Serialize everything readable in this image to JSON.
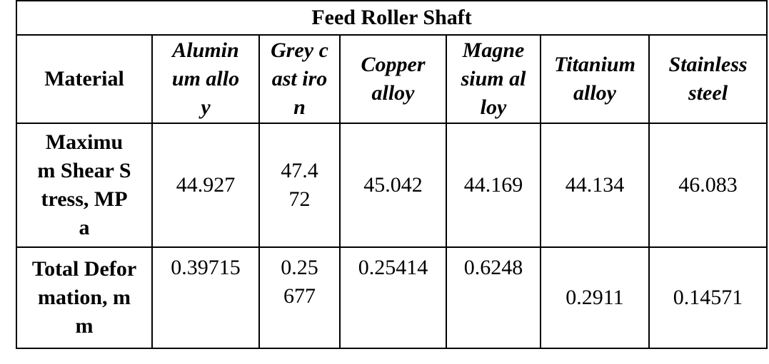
{
  "table": {
    "title": "Feed Roller Shaft",
    "row_header_label": "Material",
    "columns": [
      "Aluminum alloy",
      "Grey cast iron",
      "Copper alloy",
      "Magnesium alloy",
      "Titanium alloy",
      "Stainless steel"
    ],
    "rows": [
      {
        "label": "Maximum Shear Stress, MPa",
        "values": [
          "44.927",
          "47.472",
          "45.042",
          "44.169",
          "44.134",
          "46.083"
        ]
      },
      {
        "label": "Total Deformation, mm",
        "values": [
          "0.39715",
          "0.25677",
          "0.25414",
          "0.6248",
          "0.2911",
          "0.14571"
        ]
      }
    ]
  }
}
